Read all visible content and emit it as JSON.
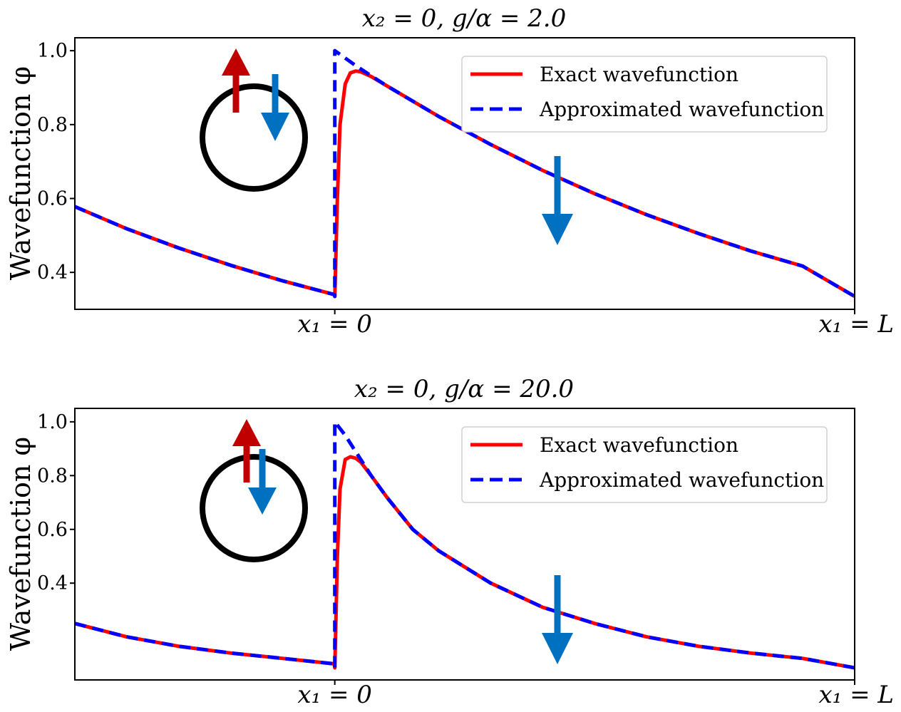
{
  "chart_data": [
    {
      "type": "line",
      "title": "x₂ = 0,   g/α = 2.0",
      "ylabel": "Wavefunction φ",
      "xticks": [
        "x₁ = 0",
        "x₁ = L"
      ],
      "yticks": [
        "0.4",
        "0.6",
        "0.8",
        "1.0"
      ],
      "ylim": [
        0.3,
        1.035
      ],
      "xlim": [
        -0.5,
        1.0
      ],
      "legend": {
        "position": "top-right",
        "entries": [
          "Exact wavefunction",
          "Approximated wavefunction"
        ]
      },
      "colors": {
        "exact": "#ff0000",
        "approx": "#0000ff",
        "spin_up": "#c00000",
        "spin_down": "#0070c0"
      },
      "series": [
        {
          "name": "Exact wavefunction",
          "x": [
            -0.5,
            -0.4,
            -0.3,
            -0.2,
            -0.1,
            -0.001,
            0.0,
            0.005,
            0.01,
            0.02,
            0.03,
            0.04,
            0.05,
            0.07,
            0.1,
            0.2,
            0.3,
            0.4,
            0.5,
            0.6,
            0.7,
            0.8,
            0.9,
            1.0
          ],
          "y": [
            0.578,
            0.518,
            0.466,
            0.419,
            0.377,
            0.34,
            0.335,
            0.6,
            0.8,
            0.91,
            0.94,
            0.945,
            0.943,
            0.93,
            0.905,
            0.822,
            0.746,
            0.676,
            0.613,
            0.556,
            0.505,
            0.458,
            0.417,
            0.335
          ]
        },
        {
          "name": "Approximated wavefunction",
          "x": [
            -0.5,
            -0.4,
            -0.3,
            -0.2,
            -0.1,
            -0.001,
            0.0,
            0.0,
            0.02,
            0.04,
            0.07,
            0.1,
            0.2,
            0.3,
            0.4,
            0.5,
            0.6,
            0.7,
            0.8,
            0.9,
            1.0
          ],
          "y": [
            0.578,
            0.518,
            0.466,
            0.419,
            0.377,
            0.34,
            0.335,
            1.0,
            0.98,
            0.96,
            0.932,
            0.905,
            0.822,
            0.746,
            0.676,
            0.613,
            0.556,
            0.505,
            0.458,
            0.417,
            0.335
          ]
        }
      ]
    },
    {
      "type": "line",
      "title": "x₂ = 0,   g/α = 20.0",
      "ylabel": "Wavefunction φ",
      "xticks": [
        "x₁ = 0",
        "x₁ = L"
      ],
      "yticks": [
        "0.4",
        "0.6",
        "0.8",
        "1.0"
      ],
      "ylim": [
        0.04,
        1.05
      ],
      "xlim": [
        -0.5,
        1.0
      ],
      "legend": {
        "position": "top-right",
        "entries": [
          "Exact wavefunction",
          "Approximated wavefunction"
        ]
      },
      "colors": {
        "exact": "#ff0000",
        "approx": "#0000ff",
        "spin_up": "#c00000",
        "spin_down": "#0070c0"
      },
      "series": [
        {
          "name": "Exact wavefunction",
          "x": [
            -0.5,
            -0.4,
            -0.3,
            -0.2,
            -0.1,
            -0.001,
            0.0,
            0.005,
            0.01,
            0.02,
            0.03,
            0.04,
            0.05,
            0.07,
            0.1,
            0.15,
            0.2,
            0.3,
            0.4,
            0.5,
            0.6,
            0.7,
            0.8,
            0.9,
            1.0
          ],
          "y": [
            0.25,
            0.2,
            0.165,
            0.14,
            0.12,
            0.1,
            0.085,
            0.5,
            0.75,
            0.86,
            0.87,
            0.865,
            0.85,
            0.8,
            0.72,
            0.6,
            0.52,
            0.4,
            0.31,
            0.25,
            0.2,
            0.165,
            0.14,
            0.12,
            0.085
          ]
        },
        {
          "name": "Approximated wavefunction",
          "x": [
            -0.5,
            -0.4,
            -0.3,
            -0.2,
            -0.1,
            -0.001,
            0.0,
            0.0,
            0.02,
            0.04,
            0.07,
            0.1,
            0.15,
            0.2,
            0.3,
            0.4,
            0.5,
            0.6,
            0.7,
            0.8,
            0.9,
            1.0
          ],
          "y": [
            0.25,
            0.2,
            0.165,
            0.14,
            0.12,
            0.1,
            0.085,
            1.0,
            0.95,
            0.89,
            0.8,
            0.72,
            0.6,
            0.52,
            0.4,
            0.31,
            0.25,
            0.2,
            0.165,
            0.14,
            0.12,
            0.085
          ]
        }
      ]
    }
  ]
}
